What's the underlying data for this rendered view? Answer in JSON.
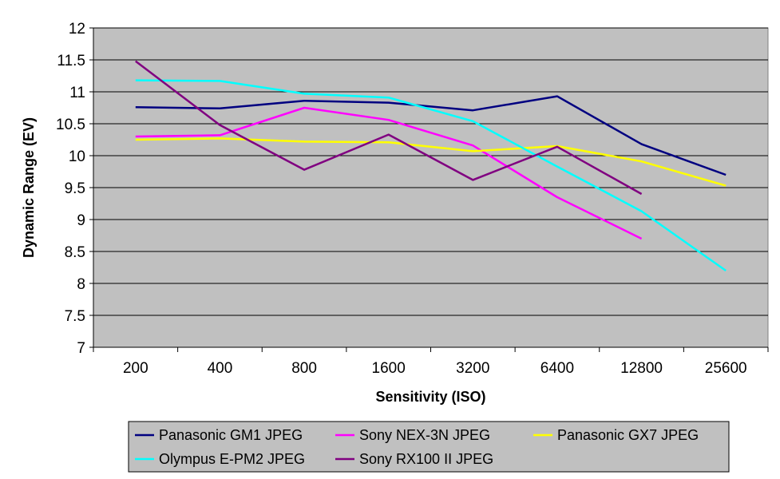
{
  "chart_data": {
    "type": "line",
    "title": "",
    "xlabel": "Sensitivity (ISO)",
    "ylabel": "Dynamic Range (EV)",
    "categories": [
      "200",
      "400",
      "800",
      "1600",
      "3200",
      "6400",
      "12800",
      "25600"
    ],
    "ylim": [
      7,
      12
    ],
    "yticks": [
      "7",
      "7.5",
      "8",
      "8.5",
      "9",
      "9.5",
      "10",
      "10.5",
      "11",
      "11.5",
      "12"
    ],
    "grid": true,
    "legend_position": "bottom",
    "plot_background": "#c0c0c0",
    "series": [
      {
        "name": "Panasonic GM1 JPEG",
        "color": "#000080",
        "values": [
          10.76,
          10.74,
          10.86,
          10.83,
          10.71,
          10.93,
          10.18,
          9.7
        ]
      },
      {
        "name": "Sony NEX-3N JPEG",
        "color": "#ff00ff",
        "values": [
          10.3,
          10.32,
          10.75,
          10.56,
          10.16,
          9.35,
          8.7,
          null
        ]
      },
      {
        "name": "Panasonic GX7 JPEG",
        "color": "#ffff00",
        "values": [
          10.25,
          10.27,
          10.22,
          10.21,
          10.07,
          10.15,
          9.91,
          9.53
        ]
      },
      {
        "name": "Olympus E-PM2 JPEG",
        "color": "#00ffff",
        "values": [
          11.18,
          11.17,
          10.97,
          10.91,
          10.54,
          9.83,
          9.13,
          8.2
        ]
      },
      {
        "name": "Sony RX100 II JPEG",
        "color": "#800080",
        "values": [
          11.48,
          10.48,
          9.78,
          10.33,
          9.62,
          10.14,
          9.4,
          null
        ]
      }
    ]
  }
}
